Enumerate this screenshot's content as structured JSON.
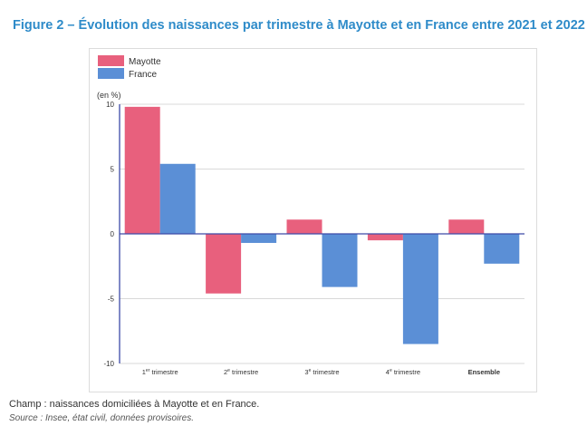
{
  "figure": {
    "title": "Figure 2 – Évolution des naissances par trimestre à Mayotte et en France entre 2021 et 2022",
    "note": "Champ : naissances domiciliées à Mayotte et en France.",
    "source": "Source : Insee, état civil, données provisoires."
  },
  "chart_data": {
    "type": "bar",
    "title": "",
    "xlabel": "",
    "ylabel": "(en %)",
    "ylim": [
      -10,
      10
    ],
    "yticks": [
      10,
      5,
      0,
      -5,
      -10
    ],
    "grid": true,
    "legend_position": "top-left",
    "categories": [
      {
        "prefix": "1",
        "sup": "er",
        "suffix": " trimestre",
        "bold": false
      },
      {
        "prefix": "2",
        "sup": "e",
        "suffix": " trimestre",
        "bold": false
      },
      {
        "prefix": "3",
        "sup": "e",
        "suffix": " trimestre",
        "bold": false
      },
      {
        "prefix": "4",
        "sup": "e",
        "suffix": " trimestre",
        "bold": false
      },
      {
        "prefix": "Ensemble",
        "sup": "",
        "suffix": "",
        "bold": true
      }
    ],
    "series": [
      {
        "name": "Mayotte",
        "color": "#e8607d",
        "values": [
          9.8,
          -4.6,
          1.1,
          -0.5,
          1.1
        ]
      },
      {
        "name": "France",
        "color": "#5b8fd6",
        "values": [
          5.4,
          -0.7,
          -4.1,
          -8.5,
          -2.3
        ]
      }
    ]
  }
}
